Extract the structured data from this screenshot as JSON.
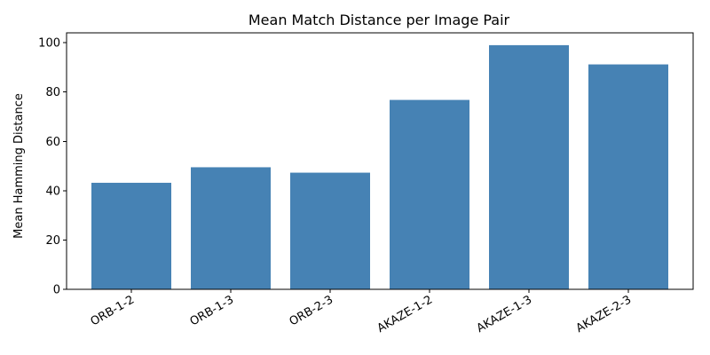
{
  "chart_data": {
    "type": "bar",
    "title": "Mean Match Distance per Image Pair",
    "xlabel": "",
    "ylabel": "Mean Hamming Distance",
    "categories": [
      "ORB-1-2",
      "ORB-1-3",
      "ORB-2-3",
      "AKAZE-1-2",
      "AKAZE-1-3",
      "AKAZE-2-3"
    ],
    "values": [
      43.2,
      49.5,
      47.3,
      76.8,
      99.0,
      91.2
    ],
    "ylim": [
      0,
      104
    ],
    "yticks": [
      0,
      20,
      40,
      60,
      80,
      100
    ],
    "bar_color": "#4682b4",
    "grid": false,
    "legend": "none"
  }
}
